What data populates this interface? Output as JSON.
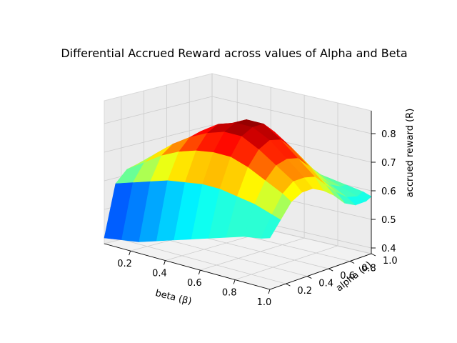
{
  "chart_data": {
    "type": "surface3d",
    "title": "Differential Accrued Reward across values of Alpha and Beta",
    "xlabel": "beta (β)",
    "ylabel": "alpha (α)",
    "zlabel": "accrued reward (R)",
    "x_ticks": [
      "0.2",
      "0.4",
      "0.6",
      "0.8",
      "1.0"
    ],
    "y_ticks": [
      "0.2",
      "0.4",
      "0.6",
      "0.8",
      "1.0"
    ],
    "z_ticks": [
      "0.4",
      "0.5",
      "0.6",
      "0.7",
      "0.8"
    ],
    "xlim": [
      0.05,
      1.0
    ],
    "ylim": [
      0.05,
      1.0
    ],
    "zlim": [
      0.38,
      0.88
    ],
    "colormap": "jet",
    "grid": true,
    "x": [
      0.05,
      0.15,
      0.25,
      0.35,
      0.45,
      0.55,
      0.65,
      0.75,
      0.85,
      0.95,
      1.0
    ],
    "y": [
      0.05,
      0.15,
      0.25,
      0.35,
      0.45,
      0.55,
      0.65,
      0.75,
      0.85,
      0.95,
      1.0
    ],
    "z": [
      [
        0.4,
        0.41,
        0.42,
        0.44,
        0.46,
        0.48,
        0.5,
        0.52,
        0.54,
        0.55,
        0.56
      ],
      [
        0.58,
        0.6,
        0.62,
        0.64,
        0.65,
        0.66,
        0.66,
        0.65,
        0.64,
        0.62,
        0.61
      ],
      [
        0.62,
        0.66,
        0.7,
        0.73,
        0.75,
        0.76,
        0.76,
        0.74,
        0.71,
        0.68,
        0.66
      ],
      [
        0.63,
        0.68,
        0.73,
        0.77,
        0.8,
        0.82,
        0.82,
        0.79,
        0.75,
        0.71,
        0.68
      ],
      [
        0.62,
        0.67,
        0.73,
        0.78,
        0.82,
        0.84,
        0.84,
        0.81,
        0.76,
        0.71,
        0.68
      ],
      [
        0.6,
        0.66,
        0.72,
        0.77,
        0.81,
        0.84,
        0.84,
        0.8,
        0.75,
        0.7,
        0.66
      ],
      [
        0.57,
        0.63,
        0.69,
        0.74,
        0.78,
        0.8,
        0.8,
        0.76,
        0.71,
        0.66,
        0.63
      ],
      [
        0.54,
        0.59,
        0.65,
        0.7,
        0.73,
        0.75,
        0.74,
        0.71,
        0.66,
        0.62,
        0.59
      ],
      [
        0.51,
        0.56,
        0.61,
        0.65,
        0.68,
        0.69,
        0.69,
        0.66,
        0.62,
        0.59,
        0.57
      ],
      [
        0.48,
        0.53,
        0.57,
        0.61,
        0.63,
        0.64,
        0.64,
        0.62,
        0.6,
        0.58,
        0.57
      ],
      [
        0.47,
        0.51,
        0.55,
        0.59,
        0.61,
        0.62,
        0.62,
        0.61,
        0.6,
        0.59,
        0.58
      ]
    ]
  }
}
